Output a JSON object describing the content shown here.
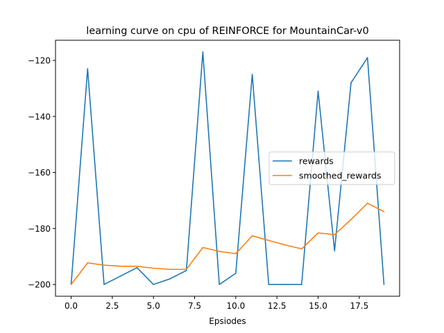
{
  "chart_data": {
    "type": "line",
    "title": "learning curve on cpu of REINFORCE for MountainCar-v0",
    "xlabel": "Epsiodes",
    "ylabel": "",
    "xlim": [
      -0.95,
      19.95
    ],
    "ylim": [
      -204.2,
      -112.8
    ],
    "xticks": [
      0.0,
      2.5,
      5.0,
      7.5,
      10.0,
      12.5,
      15.0,
      17.5
    ],
    "xtick_labels": [
      "0.0",
      "2.5",
      "5.0",
      "7.5",
      "10.0",
      "12.5",
      "15.0",
      "17.5"
    ],
    "yticks": [
      -200,
      -180,
      -160,
      -140,
      -120
    ],
    "ytick_labels": [
      "−200",
      "−180",
      "−160",
      "−140",
      "−120"
    ],
    "grid": false,
    "legend_placement": "center-right",
    "x": [
      0,
      1,
      2,
      3,
      4,
      5,
      6,
      7,
      8,
      9,
      10,
      11,
      12,
      13,
      14,
      15,
      16,
      17,
      18,
      19
    ],
    "series": [
      {
        "name": "rewards",
        "color": "#1f77b4",
        "values": [
          -200,
          -123,
          -200,
          -197,
          -194,
          -200,
          -198,
          -195,
          -117,
          -200,
          -196,
          -125,
          -200,
          -200,
          -200,
          -131,
          -188,
          -128,
          -119,
          -200
        ]
      },
      {
        "name": "smoothed_rewards",
        "color": "#ff7f0e",
        "values": [
          -200,
          -192.3,
          -193.1,
          -193.5,
          -193.5,
          -194.2,
          -194.6,
          -194.6,
          -186.8,
          -188.2,
          -189.0,
          -182.6,
          -184.3,
          -185.9,
          -187.3,
          -181.6,
          -182.2,
          -176.8,
          -171.0,
          -174.0
        ]
      }
    ]
  }
}
